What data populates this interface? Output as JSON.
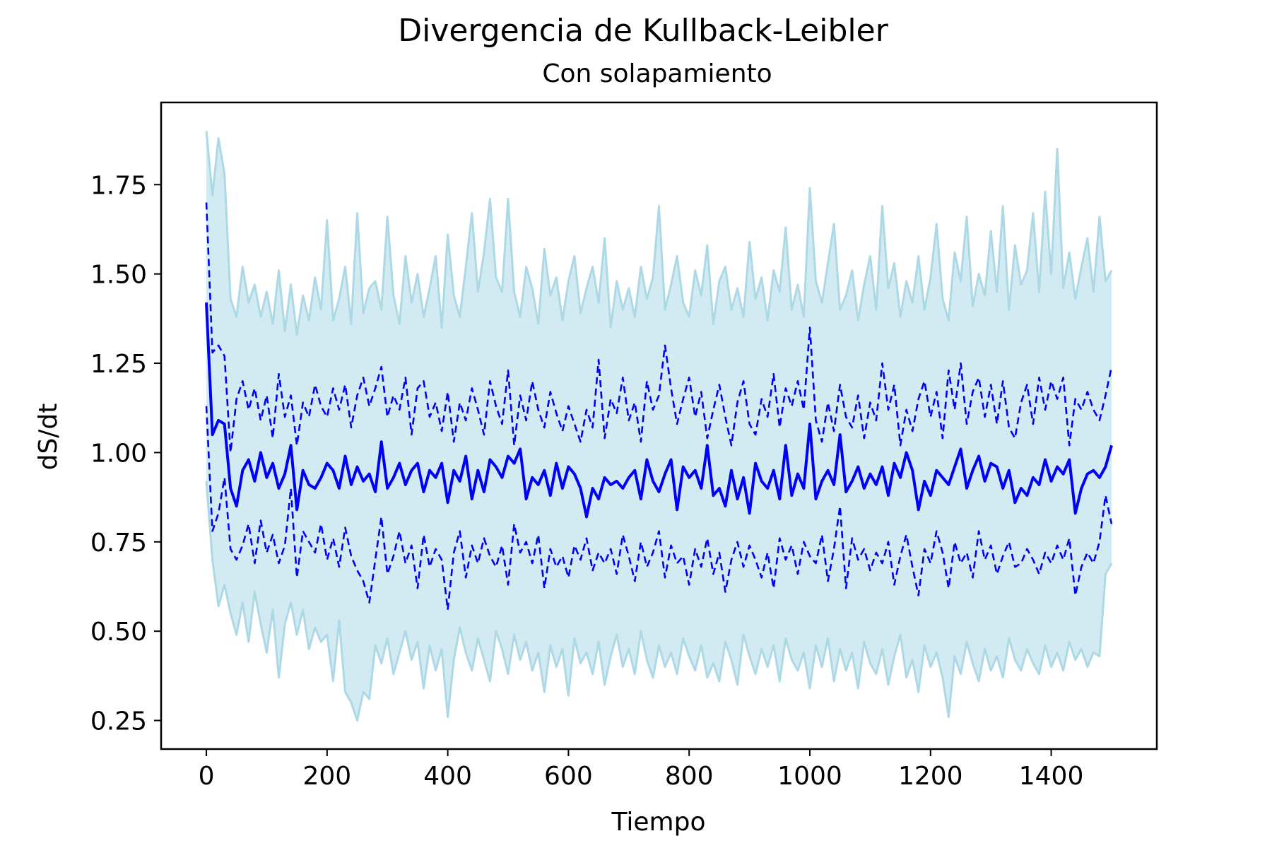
{
  "chart_data": {
    "type": "line",
    "title": "Divergencia de Kullback-Leibler",
    "subtitle": "Con solapamiento",
    "xlabel": "Tiempo",
    "ylabel": "dS/dt",
    "xlim": [
      -75,
      1575
    ],
    "ylim": [
      0.17,
      1.98
    ],
    "grid": false,
    "legend": "none",
    "x_ticks": [
      0,
      200,
      400,
      600,
      800,
      1000,
      1200,
      1400
    ],
    "x_tick_labels": [
      "0",
      "200",
      "400",
      "600",
      "800",
      "1000",
      "1200",
      "1400"
    ],
    "y_ticks": [
      0.25,
      0.5,
      0.75,
      1.0,
      1.25,
      1.5,
      1.75
    ],
    "y_tick_labels": [
      "0.25",
      "0.50",
      "0.75",
      "1.00",
      "1.25",
      "1.50",
      "1.75"
    ],
    "x": [
      0,
      10,
      20,
      30,
      40,
      50,
      60,
      70,
      80,
      90,
      100,
      110,
      120,
      130,
      140,
      150,
      160,
      170,
      180,
      190,
      200,
      210,
      220,
      230,
      240,
      250,
      260,
      270,
      280,
      290,
      300,
      310,
      320,
      330,
      340,
      350,
      360,
      370,
      380,
      390,
      400,
      410,
      420,
      430,
      440,
      450,
      460,
      470,
      480,
      490,
      500,
      510,
      520,
      530,
      540,
      550,
      560,
      570,
      580,
      590,
      600,
      610,
      620,
      630,
      640,
      650,
      660,
      670,
      680,
      690,
      700,
      710,
      720,
      730,
      740,
      750,
      760,
      770,
      780,
      790,
      800,
      810,
      820,
      830,
      840,
      850,
      860,
      870,
      880,
      890,
      900,
      910,
      920,
      930,
      940,
      950,
      960,
      970,
      980,
      990,
      1000,
      1010,
      1020,
      1030,
      1040,
      1050,
      1060,
      1070,
      1080,
      1090,
      1100,
      1110,
      1120,
      1130,
      1140,
      1150,
      1160,
      1170,
      1180,
      1190,
      1200,
      1210,
      1220,
      1230,
      1240,
      1250,
      1260,
      1270,
      1280,
      1290,
      1300,
      1310,
      1320,
      1330,
      1340,
      1350,
      1360,
      1370,
      1380,
      1390,
      1400,
      1410,
      1420,
      1430,
      1440,
      1450,
      1460,
      1470,
      1480,
      1490,
      1500
    ],
    "series": [
      {
        "role": "mean",
        "color": "#0000ff",
        "style": "solid",
        "values": [
          1.42,
          1.05,
          1.09,
          1.08,
          0.9,
          0.85,
          0.95,
          0.98,
          0.92,
          1.0,
          0.93,
          0.97,
          0.9,
          0.94,
          1.02,
          0.84,
          0.95,
          0.91,
          0.9,
          0.93,
          0.97,
          0.95,
          0.9,
          0.99,
          0.91,
          0.96,
          0.92,
          0.94,
          0.89,
          1.03,
          0.9,
          0.93,
          0.97,
          0.91,
          0.95,
          0.97,
          0.89,
          0.95,
          0.93,
          0.97,
          0.86,
          0.95,
          0.92,
          0.99,
          0.87,
          0.95,
          0.89,
          0.98,
          0.96,
          0.93,
          0.99,
          0.97,
          1.01,
          0.87,
          0.93,
          0.91,
          0.95,
          0.88,
          0.97,
          0.9,
          0.96,
          0.94,
          0.9,
          0.82,
          0.9,
          0.87,
          0.93,
          0.91,
          0.92,
          0.9,
          0.93,
          0.95,
          0.87,
          0.98,
          0.92,
          0.89,
          0.94,
          0.98,
          0.84,
          0.96,
          0.93,
          0.95,
          0.9,
          1.02,
          0.88,
          0.9,
          0.85,
          0.95,
          0.87,
          0.93,
          0.83,
          0.97,
          0.92,
          0.9,
          0.95,
          0.87,
          1.02,
          0.88,
          0.94,
          0.9,
          1.08,
          0.87,
          0.92,
          0.95,
          0.91,
          1.05,
          0.89,
          0.92,
          0.96,
          0.9,
          0.94,
          0.91,
          0.96,
          0.88,
          0.97,
          0.93,
          1.0,
          0.95,
          0.84,
          0.92,
          0.88,
          0.95,
          0.93,
          0.91,
          0.96,
          1.01,
          0.9,
          0.95,
          0.99,
          0.92,
          0.97,
          0.96,
          0.9,
          0.95,
          0.86,
          0.9,
          0.88,
          0.93,
          0.91,
          0.98,
          0.92,
          0.96,
          0.94,
          0.98,
          0.83,
          0.9,
          0.94,
          0.95,
          0.93,
          0.96,
          1.02
        ]
      },
      {
        "role": "upper-band",
        "color": "#0000ff",
        "style": "dashed",
        "values": [
          1.7,
          1.28,
          1.3,
          1.27,
          1.0,
          1.15,
          1.2,
          1.12,
          1.18,
          1.09,
          1.16,
          1.04,
          1.22,
          1.1,
          1.16,
          1.02,
          1.14,
          1.1,
          1.19,
          1.13,
          1.1,
          1.18,
          1.12,
          1.19,
          1.07,
          1.16,
          1.21,
          1.13,
          1.18,
          1.24,
          1.1,
          1.16,
          1.12,
          1.21,
          1.05,
          1.18,
          1.2,
          1.1,
          1.14,
          1.06,
          1.17,
          1.03,
          1.14,
          1.09,
          1.18,
          1.12,
          1.05,
          1.2,
          1.13,
          1.08,
          1.23,
          1.02,
          1.16,
          1.09,
          1.2,
          1.12,
          1.07,
          1.17,
          1.11,
          1.06,
          1.13,
          1.08,
          1.03,
          1.12,
          1.07,
          1.26,
          1.04,
          1.15,
          1.11,
          1.21,
          1.09,
          1.14,
          1.03,
          1.2,
          1.12,
          1.16,
          1.3,
          1.18,
          1.08,
          1.15,
          1.21,
          1.1,
          1.17,
          1.04,
          1.12,
          1.19,
          1.1,
          1.02,
          1.14,
          1.2,
          1.08,
          1.05,
          1.15,
          1.1,
          1.22,
          1.07,
          1.18,
          1.13,
          1.2,
          1.12,
          1.35,
          1.09,
          1.03,
          1.14,
          1.06,
          1.19,
          1.1,
          1.07,
          1.16,
          1.04,
          1.14,
          1.09,
          1.25,
          1.12,
          1.19,
          1.02,
          1.12,
          1.06,
          1.15,
          1.2,
          1.1,
          1.17,
          1.04,
          1.23,
          1.12,
          1.25,
          1.08,
          1.17,
          1.21,
          1.1,
          1.19,
          1.08,
          1.2,
          1.07,
          1.04,
          1.14,
          1.19,
          1.08,
          1.21,
          1.12,
          1.2,
          1.15,
          1.21,
          1.02,
          1.15,
          1.12,
          1.17,
          1.12,
          1.09,
          1.16,
          1.24
        ]
      },
      {
        "role": "lower-band",
        "color": "#0000ff",
        "style": "dashed",
        "values": [
          1.13,
          0.78,
          0.83,
          0.93,
          0.73,
          0.7,
          0.74,
          0.8,
          0.69,
          0.81,
          0.72,
          0.77,
          0.69,
          0.74,
          0.9,
          0.65,
          0.78,
          0.75,
          0.72,
          0.8,
          0.7,
          0.76,
          0.68,
          0.79,
          0.71,
          0.67,
          0.64,
          0.58,
          0.7,
          0.82,
          0.66,
          0.71,
          0.78,
          0.69,
          0.74,
          0.62,
          0.77,
          0.68,
          0.73,
          0.7,
          0.56,
          0.72,
          0.78,
          0.65,
          0.74,
          0.69,
          0.76,
          0.71,
          0.68,
          0.74,
          0.63,
          0.8,
          0.72,
          0.75,
          0.69,
          0.77,
          0.62,
          0.73,
          0.68,
          0.71,
          0.65,
          0.74,
          0.7,
          0.76,
          0.67,
          0.72,
          0.69,
          0.73,
          0.66,
          0.77,
          0.71,
          0.64,
          0.75,
          0.68,
          0.72,
          0.78,
          0.65,
          0.74,
          0.69,
          0.71,
          0.63,
          0.73,
          0.68,
          0.76,
          0.66,
          0.72,
          0.61,
          0.7,
          0.75,
          0.68,
          0.74,
          0.7,
          0.65,
          0.72,
          0.62,
          0.76,
          0.7,
          0.74,
          0.66,
          0.75,
          0.71,
          0.69,
          0.77,
          0.64,
          0.73,
          0.85,
          0.62,
          0.76,
          0.7,
          0.73,
          0.67,
          0.72,
          0.69,
          0.75,
          0.63,
          0.71,
          0.77,
          0.68,
          0.6,
          0.73,
          0.69,
          0.78,
          0.72,
          0.62,
          0.75,
          0.69,
          0.72,
          0.65,
          0.78,
          0.7,
          0.74,
          0.66,
          0.71,
          0.75,
          0.68,
          0.69,
          0.73,
          0.7,
          0.66,
          0.72,
          0.69,
          0.74,
          0.7,
          0.76,
          0.6,
          0.68,
          0.72,
          0.69,
          0.75,
          0.88,
          0.8
        ]
      },
      {
        "role": "sample-trajectory-max",
        "color": "#add8e6",
        "style": "solid",
        "values": [
          1.9,
          1.72,
          1.88,
          1.78,
          1.43,
          1.38,
          1.52,
          1.42,
          1.47,
          1.38,
          1.45,
          1.36,
          1.51,
          1.34,
          1.47,
          1.33,
          1.44,
          1.37,
          1.49,
          1.4,
          1.65,
          1.37,
          1.43,
          1.52,
          1.36,
          1.67,
          1.39,
          1.46,
          1.48,
          1.4,
          1.66,
          1.44,
          1.36,
          1.55,
          1.42,
          1.5,
          1.38,
          1.46,
          1.55,
          1.35,
          1.61,
          1.44,
          1.38,
          1.52,
          1.67,
          1.45,
          1.56,
          1.71,
          1.49,
          1.45,
          1.71,
          1.45,
          1.38,
          1.52,
          1.46,
          1.36,
          1.57,
          1.44,
          1.49,
          1.37,
          1.48,
          1.55,
          1.39,
          1.46,
          1.52,
          1.42,
          1.6,
          1.35,
          1.48,
          1.4,
          1.46,
          1.38,
          1.52,
          1.43,
          1.49,
          1.69,
          1.4,
          1.47,
          1.55,
          1.42,
          1.38,
          1.51,
          1.44,
          1.58,
          1.36,
          1.48,
          1.52,
          1.4,
          1.46,
          1.38,
          1.59,
          1.43,
          1.49,
          1.37,
          1.51,
          1.45,
          1.63,
          1.4,
          1.47,
          1.38,
          1.74,
          1.48,
          1.42,
          1.53,
          1.64,
          1.4,
          1.44,
          1.51,
          1.37,
          1.47,
          1.55,
          1.4,
          1.69,
          1.46,
          1.53,
          1.38,
          1.48,
          1.42,
          1.55,
          1.4,
          1.49,
          1.64,
          1.43,
          1.37,
          1.56,
          1.48,
          1.66,
          1.41,
          1.5,
          1.44,
          1.62,
          1.45,
          1.69,
          1.4,
          1.58,
          1.47,
          1.51,
          1.67,
          1.45,
          1.73,
          1.5,
          1.85,
          1.46,
          1.56,
          1.43,
          1.52,
          1.6,
          1.45,
          1.66,
          1.48,
          1.51
        ]
      },
      {
        "role": "sample-trajectory-min",
        "color": "#add8e6",
        "style": "solid",
        "values": [
          0.92,
          0.7,
          0.57,
          0.63,
          0.55,
          0.49,
          0.58,
          0.47,
          0.61,
          0.52,
          0.44,
          0.56,
          0.37,
          0.52,
          0.58,
          0.49,
          0.56,
          0.45,
          0.51,
          0.47,
          0.49,
          0.36,
          0.53,
          0.33,
          0.3,
          0.25,
          0.33,
          0.31,
          0.46,
          0.41,
          0.48,
          0.38,
          0.44,
          0.5,
          0.42,
          0.47,
          0.34,
          0.46,
          0.39,
          0.45,
          0.26,
          0.42,
          0.51,
          0.44,
          0.39,
          0.48,
          0.42,
          0.36,
          0.5,
          0.45,
          0.38,
          0.49,
          0.42,
          0.47,
          0.39,
          0.44,
          0.33,
          0.46,
          0.4,
          0.45,
          0.32,
          0.48,
          0.41,
          0.44,
          0.38,
          0.47,
          0.35,
          0.43,
          0.49,
          0.4,
          0.45,
          0.38,
          0.5,
          0.42,
          0.37,
          0.46,
          0.4,
          0.44,
          0.38,
          0.48,
          0.43,
          0.39,
          0.46,
          0.37,
          0.41,
          0.36,
          0.47,
          0.42,
          0.35,
          0.49,
          0.43,
          0.38,
          0.45,
          0.4,
          0.46,
          0.36,
          0.48,
          0.42,
          0.39,
          0.44,
          0.34,
          0.46,
          0.4,
          0.48,
          0.36,
          0.45,
          0.39,
          0.44,
          0.34,
          0.47,
          0.41,
          0.38,
          0.45,
          0.35,
          0.43,
          0.49,
          0.37,
          0.42,
          0.33,
          0.46,
          0.4,
          0.44,
          0.37,
          0.26,
          0.43,
          0.38,
          0.47,
          0.41,
          0.36,
          0.45,
          0.39,
          0.43,
          0.37,
          0.48,
          0.42,
          0.39,
          0.45,
          0.41,
          0.38,
          0.46,
          0.4,
          0.44,
          0.39,
          0.47,
          0.42,
          0.45,
          0.4,
          0.44,
          0.43,
          0.66,
          0.69
        ]
      }
    ]
  }
}
